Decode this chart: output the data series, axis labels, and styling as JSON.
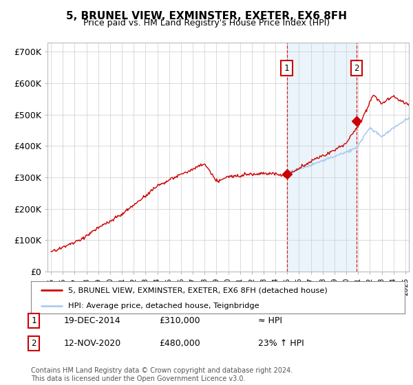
{
  "title": "5, BRUNEL VIEW, EXMINSTER, EXETER, EX6 8FH",
  "subtitle": "Price paid vs. HM Land Registry's House Price Index (HPI)",
  "ylabel_ticks": [
    "£0",
    "£100K",
    "£200K",
    "£300K",
    "£400K",
    "£500K",
    "£600K",
    "£700K"
  ],
  "ytick_vals": [
    0,
    100000,
    200000,
    300000,
    400000,
    500000,
    600000,
    700000
  ],
  "ylim": [
    0,
    730000
  ],
  "xlim_start": 1994.7,
  "xlim_end": 2025.3,
  "sale1_date": 2014.96,
  "sale1_price": 310000,
  "sale1_label": "1",
  "sale2_date": 2020.87,
  "sale2_price": 480000,
  "sale2_label": "2",
  "hpi_color": "#aaccee",
  "hpi_fill_color": "#ddeeff",
  "price_color": "#cc0000",
  "sale_marker_color": "#cc0000",
  "vline_color": "#cc0000",
  "legend_line1": "5, BRUNEL VIEW, EXMINSTER, EXETER, EX6 8FH (detached house)",
  "legend_line2": "HPI: Average price, detached house, Teignbridge",
  "table_row1": [
    "1",
    "19-DEC-2014",
    "£310,000",
    "≈ HPI"
  ],
  "table_row2": [
    "2",
    "12-NOV-2020",
    "£480,000",
    "23% ↑ HPI"
  ],
  "footer": "Contains HM Land Registry data © Crown copyright and database right 2024.\nThis data is licensed under the Open Government Licence v3.0.",
  "background_color": "#ffffff",
  "grid_color": "#cccccc"
}
